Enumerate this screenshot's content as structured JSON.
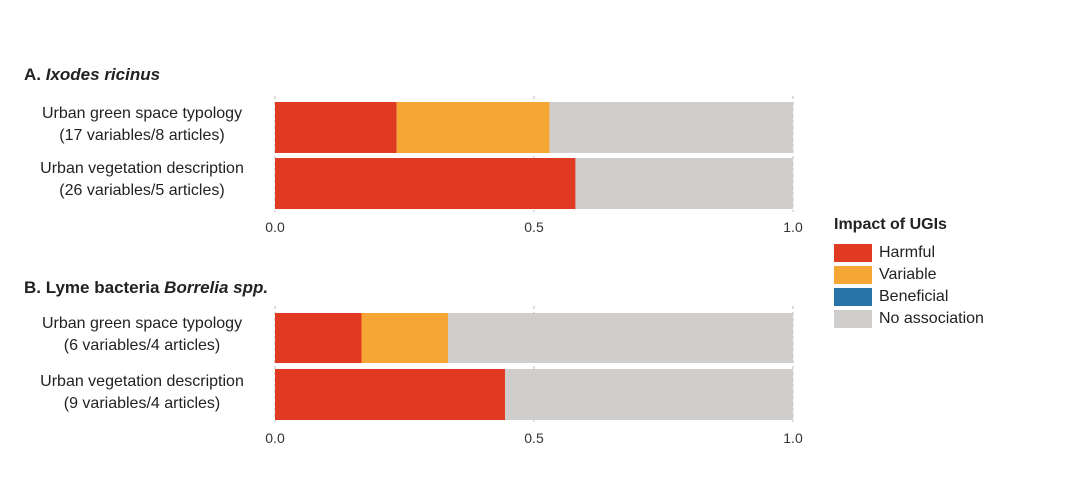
{
  "chart_data": [
    {
      "type": "bar",
      "orientation": "horizontal",
      "stacked": true,
      "panel_prefix": "A.",
      "panel_species": "Ixodes ricinus",
      "categories": [
        [
          "Urban green space typology",
          "(17 variables/8 articles)"
        ],
        [
          "Urban vegetation description",
          "(26 variables/5 articles)"
        ]
      ],
      "series": [
        {
          "name": "Harmful",
          "values": [
            0.235,
            0.58
          ]
        },
        {
          "name": "Variable",
          "values": [
            0.295,
            0.0
          ]
        },
        {
          "name": "Beneficial",
          "values": [
            0.0,
            0.0
          ]
        },
        {
          "name": "No association",
          "values": [
            0.47,
            0.42
          ]
        }
      ],
      "xlim": [
        0,
        1
      ],
      "x_ticks": [
        "0.0",
        "0.5",
        "1.0"
      ],
      "grid": "vertical dashed"
    },
    {
      "type": "bar",
      "orientation": "horizontal",
      "stacked": true,
      "panel_prefix": "B. Lyme bacteria",
      "panel_species": "Borrelia spp.",
      "categories": [
        [
          "Urban green space typology",
          "(6 variables/4 articles)"
        ],
        [
          "Urban vegetation description",
          "(9 variables/4 articles)"
        ]
      ],
      "series": [
        {
          "name": "Harmful",
          "values": [
            0.167,
            0.444
          ]
        },
        {
          "name": "Variable",
          "values": [
            0.167,
            0.0
          ]
        },
        {
          "name": "Beneficial",
          "values": [
            0.0,
            0.0
          ]
        },
        {
          "name": "No association",
          "values": [
            0.666,
            0.556
          ]
        }
      ],
      "xlim": [
        0,
        1
      ],
      "x_ticks": [
        "0.0",
        "0.5",
        "1.0"
      ],
      "grid": "vertical dashed"
    }
  ],
  "legend": {
    "title": "Impact of UGIs",
    "items": [
      {
        "label": "Harmful",
        "color": "#e03a22"
      },
      {
        "label": "Variable",
        "color": "#f6a635"
      },
      {
        "label": "Beneficial",
        "color": "#2874a6"
      },
      {
        "label": "No association",
        "color": "#cfcecd"
      }
    ]
  }
}
